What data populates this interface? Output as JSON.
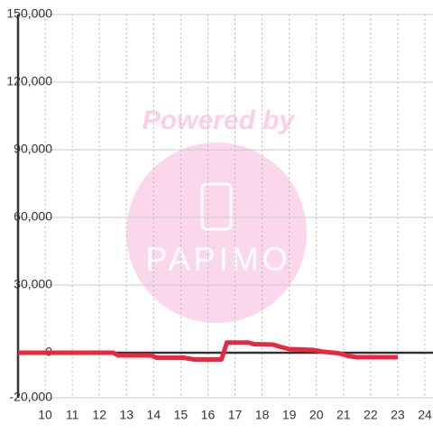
{
  "chart_data": {
    "type": "line",
    "x": [
      9,
      12.5,
      12.7,
      13.9,
      14.1,
      15.1,
      15.5,
      16.5,
      16.7,
      17.5,
      17.7,
      18.4,
      18.7,
      19,
      19.9,
      20.2,
      20.8,
      21.2,
      21.5,
      23
    ],
    "values": [
      0,
      0,
      -1200,
      -1200,
      -2200,
      -2200,
      -3000,
      -3000,
      4500,
      4500,
      3800,
      3600,
      2500,
      1600,
      1200,
      500,
      -200,
      -1500,
      -2000,
      -2000
    ],
    "color": "#e8283c",
    "xlim": [
      9,
      24.3
    ],
    "xticks": [
      10,
      11,
      12,
      13,
      14,
      15,
      16,
      17,
      18,
      19,
      20,
      21,
      22,
      23,
      24
    ],
    "ylim": [
      -20000,
      150000
    ],
    "yticks": [
      {
        "value": -20000,
        "label": "-20,000"
      },
      0,
      {
        "value": 30000,
        "label": "30,000"
      },
      {
        "value": 60000,
        "label": "60,000"
      },
      {
        "value": 90000,
        "label": "90,000"
      },
      {
        "value": 120000,
        "label": "120,000"
      },
      {
        "value": 150000,
        "label": "150,000"
      }
    ],
    "grid": true,
    "watermark": [
      "Powered by",
      "PAPIMO"
    ]
  }
}
